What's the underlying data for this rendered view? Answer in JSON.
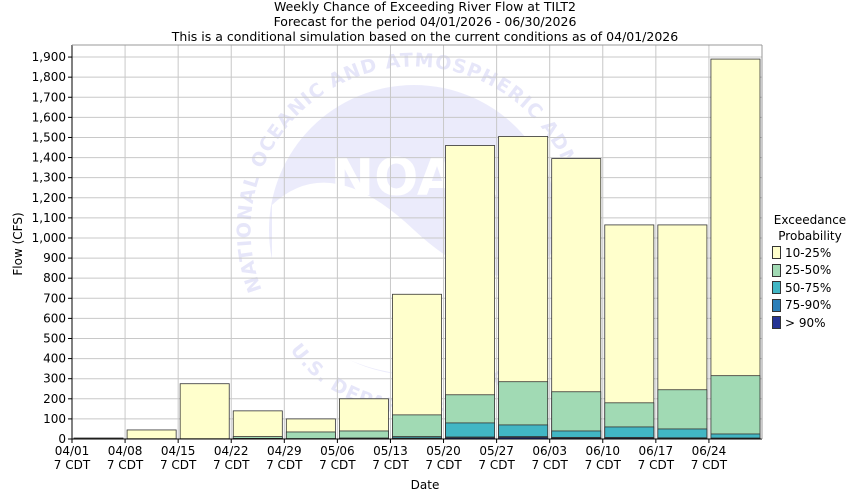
{
  "header": {
    "title": "Weekly Chance of Exceeding River Flow at TILT2",
    "subtitle": "Forecast for the period 04/01/2026 - 06/30/2026",
    "note": "This is a conditional simulation based on the current conditions as of 04/01/2026"
  },
  "legend": {
    "title_line1": "Exceedance",
    "title_line2": "Probability",
    "items": [
      {
        "label": "10-25%",
        "color": "#ffffcc"
      },
      {
        "label": "25-50%",
        "color": "#a1dab4"
      },
      {
        "label": "50-75%",
        "color": "#41b6c4"
      },
      {
        "label": "75-90%",
        "color": "#2c7fb8"
      },
      {
        "label": "> 90%",
        "color": "#253494"
      }
    ]
  },
  "watermark": {
    "text_top": "NATIONAL OCEANIC AND ATMOSPHERIC ADMINISTRATION",
    "text_bottom": "U.S. DEPARTMENT OF COMMERCE",
    "logo": "NOAA"
  },
  "chart_data": {
    "type": "bar",
    "title": "Weekly Chance of Exceeding River Flow at TILT2",
    "xlabel": "Date",
    "ylabel": "Flow (CFS)",
    "ylim": [
      0,
      1960
    ],
    "yticks": [
      0,
      100,
      200,
      300,
      400,
      500,
      600,
      700,
      800,
      900,
      1000,
      1100,
      1200,
      1300,
      1400,
      1500,
      1600,
      1700,
      1800,
      1900
    ],
    "grid": true,
    "legend_position": "right",
    "categories": [
      "04/01 7 CDT",
      "04/08 7 CDT",
      "04/15 7 CDT",
      "04/22 7 CDT",
      "04/29 7 CDT",
      "05/06 7 CDT",
      "05/13 7 CDT",
      "05/20 7 CDT",
      "05/27 7 CDT",
      "06/03 7 CDT",
      "06/10 7 CDT",
      "06/17 7 CDT",
      "06/24 7 CDT"
    ],
    "series": [
      {
        "name": "10-25%",
        "values": [
          5,
          45,
          275,
          140,
          100,
          200,
          720,
          1460,
          1505,
          1395,
          1065,
          1065,
          1890
        ]
      },
      {
        "name": "25-50%",
        "values": [
          2,
          1,
          1,
          12,
          35,
          40,
          120,
          220,
          285,
          235,
          180,
          245,
          315
        ]
      },
      {
        "name": "50-75%",
        "values": [
          1,
          1,
          1,
          3,
          2,
          5,
          12,
          80,
          70,
          40,
          60,
          50,
          25
        ]
      },
      {
        "name": "75-90%",
        "values": [
          1,
          0,
          0,
          1,
          1,
          3,
          5,
          10,
          12,
          8,
          8,
          6,
          5
        ]
      },
      {
        "name": "> 90%",
        "values": [
          0,
          0,
          0,
          0,
          0,
          0,
          3,
          6,
          8,
          5,
          5,
          4,
          3
        ]
      }
    ]
  }
}
